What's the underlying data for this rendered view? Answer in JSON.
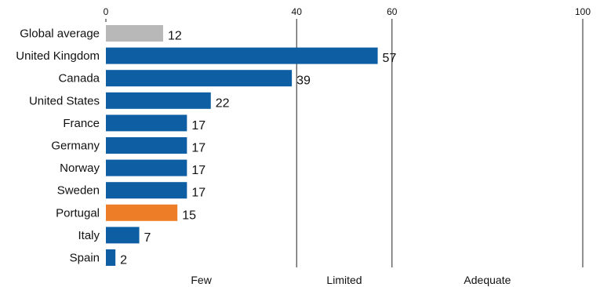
{
  "chart_data": {
    "type": "bar",
    "orientation": "horizontal",
    "categories": [
      "Global average",
      "United Kingdom",
      "Canada",
      "United States",
      "France",
      "Germany",
      "Norway",
      "Sweden",
      "Portugal",
      "Italy",
      "Spain"
    ],
    "values": [
      12,
      57,
      39,
      22,
      17,
      17,
      17,
      17,
      15,
      7,
      2
    ],
    "bar_colors": [
      "#b8b8b8",
      "#0d5ea2",
      "#0d5ea2",
      "#0d5ea2",
      "#0d5ea2",
      "#0d5ea2",
      "#0d5ea2",
      "#0d5ea2",
      "#ee7d27",
      "#0d5ea2",
      "#0d5ea2"
    ],
    "x_ticks": [
      0,
      40,
      60,
      100
    ],
    "xlim": [
      0,
      100
    ],
    "bands": [
      {
        "label": "Few",
        "from": 0,
        "to": 40
      },
      {
        "label": "Limited",
        "from": 40,
        "to": 60
      },
      {
        "label": "Adequate",
        "from": 60,
        "to": 100
      }
    ],
    "title": "",
    "xlabel": "",
    "ylabel": "",
    "grid": "vertical lines at 40, 60, 100",
    "legend": "none"
  }
}
